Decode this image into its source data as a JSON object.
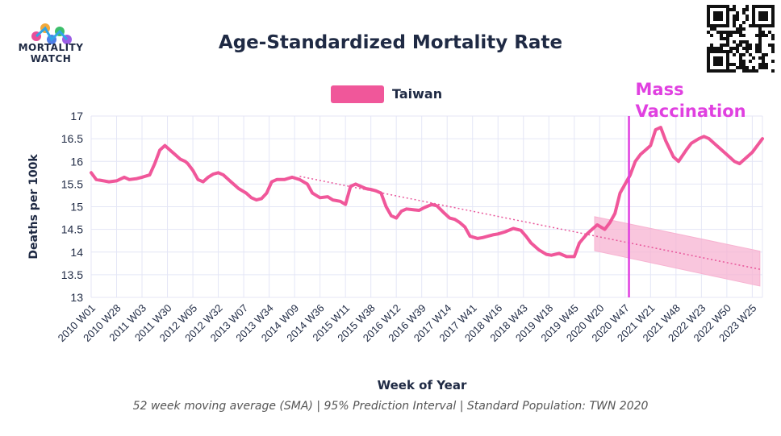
{
  "brand": {
    "logo_text": "MORTALITY\nWATCH"
  },
  "colors": {
    "series": "#f0579a",
    "interval": "#f7b3d1",
    "trend": "#e8559a",
    "marker": "#e040e0",
    "grid": "#e4e6f6",
    "text": "#1f2a44"
  },
  "chart_data": {
    "type": "line",
    "title": "Age-Standardized Mortality Rate",
    "xlabel": "Week of Year",
    "ylabel": "Deaths per 100k",
    "ylim": [
      13,
      17
    ],
    "yticks": [
      "13",
      "13.5",
      "14",
      "14.5",
      "15",
      "15.5",
      "16",
      "16.5",
      "17"
    ],
    "x_tick_labels": [
      "2010 W01",
      "2010 W28",
      "2011 W03",
      "2011 W30",
      "2012 W05",
      "2012 W32",
      "2013 W07",
      "2013 W34",
      "2014 W09",
      "2014 W36",
      "2015 W11",
      "2015 W38",
      "2016 W12",
      "2016 W39",
      "2017 W14",
      "2017 W41",
      "2018 W16",
      "2018 W43",
      "2019 W18",
      "2019 W45",
      "2020 W20",
      "2020 W47",
      "2021 W21",
      "2021 W48",
      "2022 W23",
      "2022 W50",
      "2023 W25"
    ],
    "legend": {
      "label": "Taiwan",
      "position": "top-center"
    },
    "series": [
      {
        "name": "Taiwan",
        "x": [
          0,
          0.2,
          0.4,
          0.7,
          1.0,
          1.3,
          1.5,
          1.8,
          2.0,
          2.3,
          2.5,
          2.7,
          2.9,
          3.1,
          3.3,
          3.5,
          3.7,
          3.8,
          4.0,
          4.2,
          4.4,
          4.6,
          4.8,
          5.0,
          5.2,
          5.5,
          5.8,
          6.1,
          6.3,
          6.5,
          6.7,
          6.9,
          7.1,
          7.3,
          7.6,
          7.9,
          8.2,
          8.5,
          8.7,
          9.0,
          9.3,
          9.5,
          9.8,
          10.0,
          10.2,
          10.4,
          10.6,
          10.8,
          11.0,
          11.2,
          11.4,
          11.6,
          11.8,
          12.0,
          12.2,
          12.4,
          12.7,
          12.9,
          13.1,
          13.4,
          13.6,
          13.9,
          14.1,
          14.3,
          14.5,
          14.7,
          14.9,
          15.2,
          15.4,
          15.6,
          15.8,
          16.0,
          16.3,
          16.6,
          16.9,
          17.1,
          17.3,
          17.6,
          17.9,
          18.1,
          18.4,
          18.7,
          19.0,
          19.2,
          19.5,
          19.7,
          19.9,
          20.2,
          20.4,
          20.6,
          20.8,
          21.0,
          21.2,
          21.4,
          21.6,
          21.8,
          22.0,
          22.2,
          22.4,
          22.6,
          22.9,
          23.1,
          23.4,
          23.6,
          23.9,
          24.1,
          24.3,
          24.5,
          24.7,
          24.9,
          25.1,
          25.3,
          25.5,
          25.6,
          25.8,
          26.0,
          26.2,
          26.4
        ],
        "values": [
          15.75,
          15.6,
          15.58,
          15.55,
          15.57,
          15.65,
          15.6,
          15.62,
          15.65,
          15.7,
          15.95,
          16.25,
          16.35,
          16.25,
          16.15,
          16.05,
          16.0,
          15.95,
          15.8,
          15.6,
          15.55,
          15.65,
          15.72,
          15.75,
          15.7,
          15.55,
          15.4,
          15.3,
          15.2,
          15.15,
          15.18,
          15.3,
          15.55,
          15.6,
          15.6,
          15.65,
          15.6,
          15.5,
          15.3,
          15.2,
          15.22,
          15.15,
          15.12,
          15.05,
          15.45,
          15.5,
          15.45,
          15.4,
          15.38,
          15.35,
          15.3,
          15.0,
          14.8,
          14.75,
          14.9,
          14.95,
          14.93,
          14.92,
          14.98,
          15.05,
          15.02,
          14.85,
          14.75,
          14.72,
          14.65,
          14.55,
          14.35,
          14.3,
          14.32,
          14.35,
          14.38,
          14.4,
          14.45,
          14.52,
          14.48,
          14.35,
          14.2,
          14.05,
          13.95,
          13.93,
          13.97,
          13.9,
          13.9,
          14.2,
          14.4,
          14.5,
          14.6,
          14.5,
          14.65,
          14.85,
          15.3,
          15.5,
          15.7,
          16.0,
          16.15,
          16.25,
          16.35,
          16.7,
          16.75,
          16.45,
          16.1,
          16.0,
          16.25,
          16.4,
          16.5,
          16.55,
          16.5,
          16.4,
          16.3,
          16.2,
          16.1,
          16.0,
          15.95,
          16.0,
          16.1,
          16.2,
          16.35,
          16.5
        ]
      }
    ],
    "trend_line": {
      "x": [
        8.2,
        26.3
      ],
      "values": [
        15.67,
        13.62
      ]
    },
    "prediction_interval": {
      "x": [
        19.8,
        26.3
      ],
      "upper": [
        14.78,
        14.02
      ],
      "lower": [
        14.03,
        13.25
      ]
    },
    "annotation": {
      "label": "Mass\nVaccination",
      "x": 21.15
    },
    "note": "52 week moving average (SMA) | 95% Prediction Interval | Standard Population: TWN 2020"
  }
}
